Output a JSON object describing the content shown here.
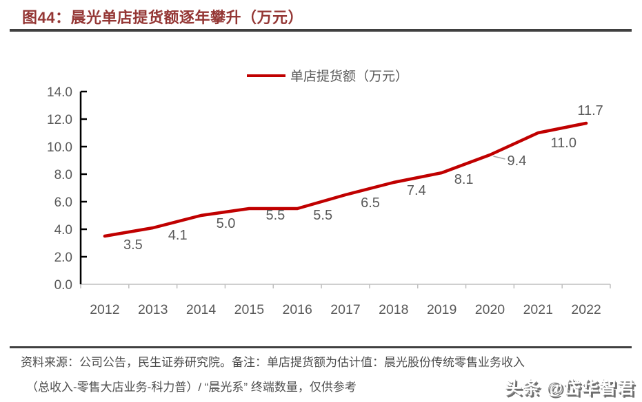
{
  "header": {
    "title": "图44：晨光单店提货额逐年攀升（万元）"
  },
  "legend": {
    "label": "单店提货额（万元）"
  },
  "chart_data": {
    "type": "line",
    "title": "图44：晨光单店提货额逐年攀升（万元）",
    "categories": [
      "2012",
      "2013",
      "2014",
      "2015",
      "2016",
      "2017",
      "2018",
      "2019",
      "2020",
      "2021",
      "2022"
    ],
    "series": [
      {
        "name": "单店提货额（万元）",
        "values": [
          3.5,
          4.1,
          5.0,
          5.5,
          5.5,
          6.5,
          7.4,
          8.1,
          9.4,
          11.0,
          11.7
        ],
        "color": "#C00000"
      }
    ],
    "data_labels": [
      "3.5",
      "4.1",
      "5.0",
      "5.5",
      "5.5",
      "6.5",
      "7.4",
      "8.1",
      "9.4",
      "11.0",
      "11.7"
    ],
    "xlabel": "",
    "ylabel": "",
    "ylim": [
      0,
      14
    ],
    "ytick_step": 2,
    "ytick_labels": [
      "0.0",
      "2.0",
      "4.0",
      "6.0",
      "8.0",
      "10.0",
      "12.0",
      "14.0"
    ],
    "grid": false,
    "legend_position": "top-center"
  },
  "colors": {
    "line": "#C00000",
    "title": "#943634",
    "axis_text": "#595959",
    "y_axis": "#000000",
    "x_axis": "#BFBFBF",
    "rule": "#404040"
  },
  "footer": {
    "source_line1": "资料来源：公司公告，民生证券研究院。备注：单店提货额为估计值：晨光股份传统零售业务收入",
    "source_line2": "（总收入-零售大店业务-科力普）/ “晨光系” 终端数量，仅供参考",
    "watermark": "头条 @岱华智君"
  }
}
